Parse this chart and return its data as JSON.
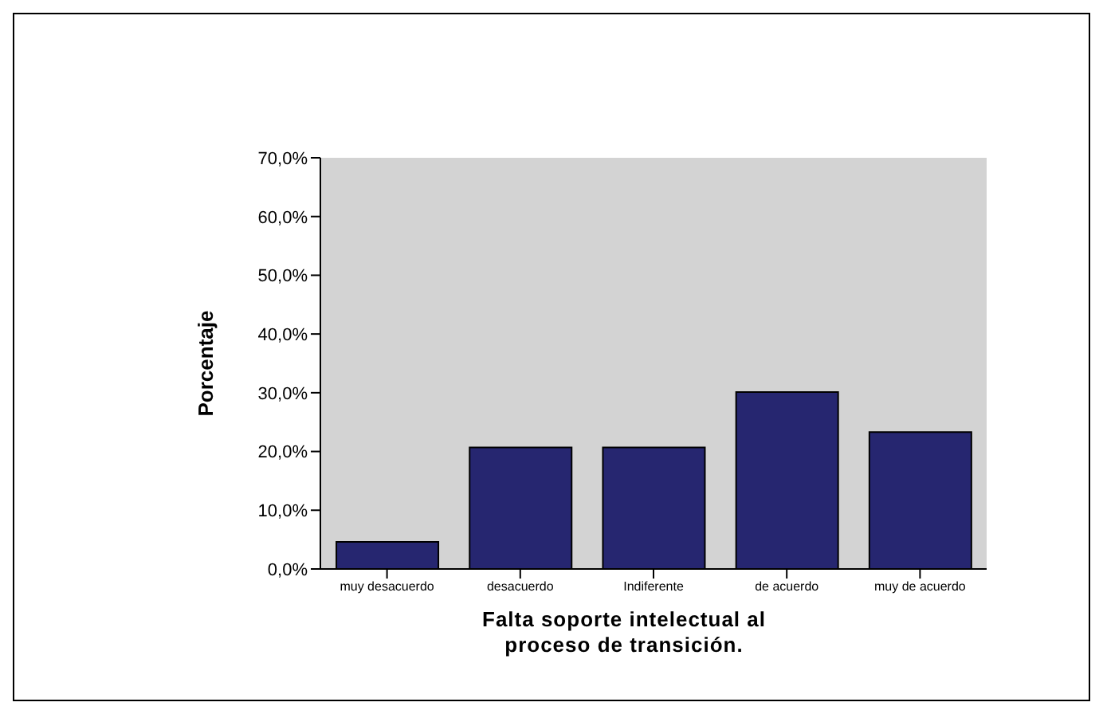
{
  "chart_data": {
    "type": "bar",
    "xlabel": "Falta soporte intelectual al proceso de transición.",
    "ylabel": "Porcentaje",
    "categories": [
      "muy desacuerdo",
      "desacuerdo",
      "Indiferente",
      "de acuerdo",
      "muy de acuerdo"
    ],
    "values": [
      4.6,
      20.7,
      20.7,
      30.1,
      23.3
    ],
    "color": "#262670",
    "ylim": [
      0,
      70
    ],
    "yticks": [
      {
        "value": 0,
        "label": "0,0%"
      },
      {
        "value": 10,
        "label": "10,0%"
      },
      {
        "value": 20,
        "label": "20,0%"
      },
      {
        "value": 30,
        "label": "30,0%"
      },
      {
        "value": 40,
        "label": "40,0%"
      },
      {
        "value": 50,
        "label": "50,0%"
      },
      {
        "value": 60,
        "label": "60,0%"
      },
      {
        "value": 70,
        "label": "70,0%"
      }
    ],
    "grid": false
  }
}
